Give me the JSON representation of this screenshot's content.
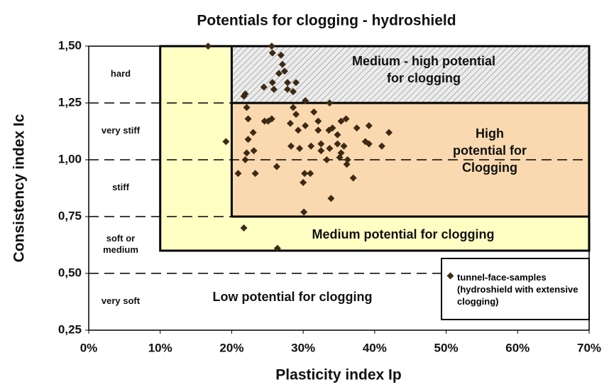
{
  "chart_data": {
    "type": "scatter",
    "title": "Potentials for clogging  - hydroshield",
    "xlabel": "Plasticity index Ip",
    "ylabel": "Consistency index Ic",
    "xlim": [
      0,
      70
    ],
    "ylim": [
      0.25,
      1.5
    ],
    "xticks": [
      {
        "value": 0,
        "label": "0%"
      },
      {
        "value": 10,
        "label": "10%"
      },
      {
        "value": 20,
        "label": "20%"
      },
      {
        "value": 30,
        "label": "30%"
      },
      {
        "value": 40,
        "label": "40%"
      },
      {
        "value": 50,
        "label": "50%"
      },
      {
        "value": 60,
        "label": "60%"
      },
      {
        "value": 70,
        "label": "70%"
      }
    ],
    "yticks": [
      {
        "value": 0.25,
        "label": "0,25"
      },
      {
        "value": 0.5,
        "label": "0,50"
      },
      {
        "value": 0.75,
        "label": "0,75"
      },
      {
        "value": 1.0,
        "label": "1,00"
      },
      {
        "value": 1.25,
        "label": "1,25"
      },
      {
        "value": 1.5,
        "label": "1,50"
      }
    ],
    "hlines": [
      1.25,
      1.0,
      0.75,
      0.5
    ],
    "consistency_classes": [
      [
        "hard"
      ],
      [
        "very stiff"
      ],
      [
        "stiff"
      ],
      [
        "soft or",
        "medium"
      ],
      [
        "very soft"
      ]
    ],
    "regions": [
      {
        "label": [
          "Medium potential for  clogging"
        ],
        "x": [
          10,
          70
        ],
        "y": [
          0.6,
          1.5
        ],
        "color": "#ffffc4"
      },
      {
        "label": [
          "High",
          "potential for",
          "Clogging"
        ],
        "x": [
          20,
          70
        ],
        "y": [
          0.75,
          1.25
        ],
        "color": "#fbd9b0"
      },
      {
        "label": [
          "Medium - high potential",
          "for clogging"
        ],
        "x": [
          20,
          70
        ],
        "y": [
          1.25,
          1.5
        ],
        "color": "hatch"
      }
    ],
    "annotations": [
      "Low potential for clogging"
    ],
    "series": [
      {
        "name": "tunnel-face-samples (hydroshield with extensive clogging)",
        "color": "#3d2a14",
        "x": [
          16.7,
          19.2,
          20.9,
          21.7,
          26.4,
          25.6,
          25.7,
          26.9,
          27.1,
          27.4,
          26.6,
          25.7,
          24.5,
          25.9,
          27.8,
          27.8,
          29.0,
          28.6,
          21.9,
          21.7,
          30.3,
          33.7,
          22.1,
          22.3,
          24.6,
          25.1,
          25.6,
          23.0,
          22.3,
          23.1,
          22.1,
          21.9,
          23.3,
          26.3,
          28.6,
          29.0,
          28.2,
          29.3,
          30.3,
          31.5,
          32.1,
          32.1,
          33.6,
          34.1,
          34.8,
          36.0,
          35.3,
          33.7,
          32.5,
          32.5,
          34.8,
          35.7,
          35.3,
          35.1,
          36.1,
          37.0,
          33.3,
          28.3,
          29.5,
          31.1,
          30.2,
          31.0,
          30.0,
          33.9,
          30.1,
          37.5,
          39.2,
          38.7,
          39.2,
          41.0,
          42.0,
          36.2
        ],
        "values": [
          1.5,
          1.08,
          0.94,
          0.7,
          0.61,
          1.5,
          1.47,
          1.46,
          1.42,
          1.39,
          1.38,
          1.34,
          1.32,
          1.31,
          1.34,
          1.31,
          1.34,
          1.3,
          1.29,
          1.28,
          1.26,
          1.25,
          1.23,
          1.18,
          1.17,
          1.17,
          1.18,
          1.12,
          1.09,
          1.04,
          1.03,
          1.0,
          0.94,
          0.97,
          1.23,
          1.2,
          1.16,
          1.13,
          1.15,
          1.21,
          1.17,
          1.13,
          1.13,
          1.14,
          1.11,
          1.18,
          1.17,
          1.05,
          1.07,
          1.04,
          1.07,
          1.06,
          1.03,
          1.01,
          0.98,
          0.92,
          1.0,
          1.06,
          1.05,
          1.06,
          0.94,
          0.94,
          0.9,
          0.83,
          0.77,
          1.14,
          1.15,
          1.08,
          1.07,
          1.06,
          1.12,
          1.0
        ]
      }
    ]
  }
}
